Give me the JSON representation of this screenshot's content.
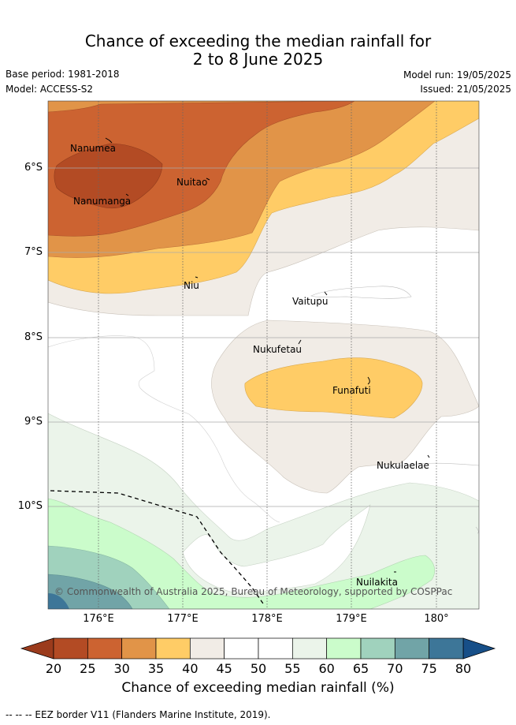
{
  "title": {
    "line1": "Chance of exceeding the median rainfall for",
    "line2": "2 to 8 June 2025"
  },
  "meta": {
    "base_period": "Base period: 1981-2018",
    "model": "Model: ACCESS-S2",
    "model_run": "Model run: 19/05/2025",
    "issued": "Issued: 21/05/2025"
  },
  "map": {
    "y_ticks": [
      "6°S",
      "7°S",
      "8°S",
      "9°S",
      "10°S"
    ],
    "x_ticks": [
      "176°E",
      "177°E",
      "178°E",
      "179°E",
      "180°"
    ],
    "places": [
      "Nanumea",
      "Nanumanga",
      "Nuitao",
      "Niu",
      "Vaitupu",
      "Nukufetau",
      "Funafuti",
      "Nukulaelae",
      "Nuilakita"
    ],
    "copyright": "© Commonwealth of Australia 2025, Bureau of Meteorology, supported by COSPPac"
  },
  "colorbar": {
    "ticks": [
      "20",
      "25",
      "30",
      "35",
      "40",
      "45",
      "50",
      "55",
      "60",
      "65",
      "70",
      "75",
      "80"
    ],
    "colors": [
      "#b34b24",
      "#cc6331",
      "#e19448",
      "#ffcc66",
      "#f1ece6",
      "#ffffff",
      "#ffffff",
      "#ebf4ea",
      "#cbfccb",
      "#a0d2bd",
      "#71a4a7",
      "#3d7698"
    ],
    "under_color": "#9b3b1c",
    "over_color": "#174f88",
    "label": "Chance of exceeding median rainfall (%)"
  },
  "footer": {
    "eez_note": "--  --  -- EEZ border V11 (Flanders Marine Institute, 2019)."
  }
}
